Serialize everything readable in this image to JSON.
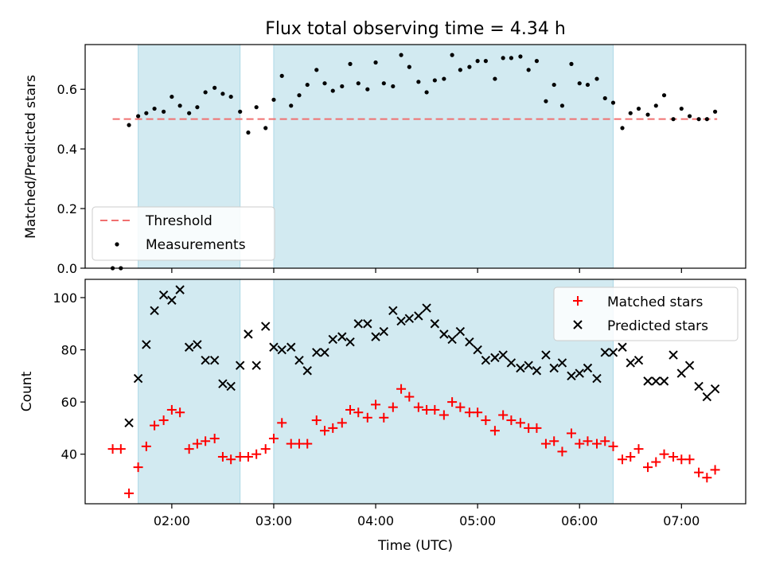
{
  "chart_data": [
    {
      "type": "scatter",
      "panel": "top",
      "title": "Flux total observing time = 4.34 h",
      "xlabel": "",
      "ylabel": "Matched/Predicted stars",
      "ylim": [
        0.0,
        0.75
      ],
      "xlim_hours": [
        1.15,
        7.63
      ],
      "yticks": [
        "0.0",
        "0.2",
        "0.4",
        "0.6"
      ],
      "yticks_values": [
        0.0,
        0.2,
        0.4,
        0.6
      ],
      "threshold": {
        "name": "Threshold",
        "value": 0.5,
        "x_range": [
          1.42,
          7.35
        ],
        "color": "#f07070"
      },
      "shaded_intervals": [
        [
          1.67,
          2.67
        ],
        [
          3.0,
          6.33
        ]
      ],
      "shade_color": "#add8e6",
      "legend": {
        "placement": "bottom-left",
        "entries": [
          "Threshold",
          "Measurements"
        ]
      },
      "series": [
        {
          "name": "Measurements",
          "color": "#000000",
          "marker": "dot",
          "x": [
            1.42,
            1.5,
            1.58,
            1.67,
            1.75,
            1.83,
            1.92,
            2.0,
            2.08,
            2.17,
            2.25,
            2.33,
            2.42,
            2.5,
            2.58,
            2.67,
            2.75,
            2.83,
            2.92,
            3.0,
            3.08,
            3.17,
            3.25,
            3.33,
            3.42,
            3.5,
            3.58,
            3.67,
            3.75,
            3.83,
            3.92,
            4.0,
            4.08,
            4.17,
            4.25,
            4.33,
            4.42,
            4.5,
            4.58,
            4.67,
            4.75,
            4.83,
            4.92,
            5.0,
            5.08,
            5.17,
            5.25,
            5.33,
            5.42,
            5.5,
            5.58,
            5.67,
            5.75,
            5.83,
            5.92,
            6.0,
            6.08,
            6.17,
            6.25,
            6.33,
            6.42,
            6.5,
            6.58,
            6.67,
            6.75,
            6.83,
            6.92,
            7.0,
            7.08,
            7.17,
            7.25,
            7.33
          ],
          "y": [
            0.0,
            0.0,
            0.48,
            0.51,
            0.52,
            0.535,
            0.525,
            0.575,
            0.545,
            0.52,
            0.54,
            0.59,
            0.605,
            0.585,
            0.575,
            0.525,
            0.455,
            0.54,
            0.47,
            0.565,
            0.645,
            0.545,
            0.58,
            0.615,
            0.665,
            0.62,
            0.595,
            0.61,
            0.685,
            0.62,
            0.6,
            0.69,
            0.62,
            0.61,
            0.715,
            0.675,
            0.625,
            0.59,
            0.63,
            0.635,
            0.715,
            0.665,
            0.675,
            0.695,
            0.695,
            0.635,
            0.705,
            0.705,
            0.71,
            0.665,
            0.695,
            0.56,
            0.615,
            0.545,
            0.685,
            0.62,
            0.615,
            0.635,
            0.57,
            0.555,
            0.47,
            0.52,
            0.535,
            0.515,
            0.545,
            0.58,
            0.5,
            0.535,
            0.51,
            0.5,
            0.5,
            0.525
          ]
        }
      ]
    },
    {
      "type": "scatter",
      "panel": "bottom",
      "title": "",
      "xlabel": "Time (UTC)",
      "ylabel": "Count",
      "ylim": [
        21,
        107
      ],
      "xlim_hours": [
        1.15,
        7.63
      ],
      "yticks": [
        "40",
        "60",
        "80",
        "100"
      ],
      "yticks_values": [
        40,
        60,
        80,
        100
      ],
      "xticks": [
        "02:00",
        "03:00",
        "04:00",
        "05:00",
        "06:00",
        "07:00"
      ],
      "xticks_values": [
        2,
        3,
        4,
        5,
        6,
        7
      ],
      "shaded_intervals": [
        [
          1.67,
          2.67
        ],
        [
          3.0,
          6.33
        ]
      ],
      "shade_color": "#add8e6",
      "legend": {
        "placement": "top-right",
        "entries": [
          "Matched stars",
          "Predicted stars"
        ]
      },
      "series": [
        {
          "name": "Matched stars",
          "color": "#ff0000",
          "marker": "plus",
          "x": [
            1.42,
            1.5,
            1.58,
            1.67,
            1.75,
            1.83,
            1.92,
            2.0,
            2.08,
            2.17,
            2.25,
            2.33,
            2.42,
            2.5,
            2.58,
            2.67,
            2.75,
            2.83,
            2.92,
            3.0,
            3.08,
            3.17,
            3.25,
            3.33,
            3.42,
            3.5,
            3.58,
            3.67,
            3.75,
            3.83,
            3.92,
            4.0,
            4.08,
            4.17,
            4.25,
            4.33,
            4.42,
            4.5,
            4.58,
            4.67,
            4.75,
            4.83,
            4.92,
            5.0,
            5.08,
            5.17,
            5.25,
            5.33,
            5.42,
            5.5,
            5.58,
            5.67,
            5.75,
            5.83,
            5.92,
            6.0,
            6.08,
            6.17,
            6.25,
            6.33,
            6.42,
            6.5,
            6.58,
            6.67,
            6.75,
            6.83,
            6.92,
            7.0,
            7.08,
            7.17,
            7.25,
            7.33
          ],
          "y": [
            42,
            42,
            25,
            35,
            43,
            51,
            53,
            57,
            56,
            42,
            44,
            45,
            46,
            39,
            38,
            39,
            39,
            40,
            42,
            46,
            52,
            44,
            44,
            44,
            53,
            49,
            50,
            52,
            57,
            56,
            54,
            59,
            54,
            58,
            65,
            62,
            58,
            57,
            57,
            55,
            60,
            58,
            56,
            56,
            53,
            49,
            55,
            53,
            52,
            50,
            50,
            44,
            45,
            41,
            48,
            44,
            45,
            44,
            45,
            43,
            38,
            39,
            42,
            35,
            37,
            40,
            39,
            38,
            38,
            33,
            31,
            34
          ]
        },
        {
          "name": "Predicted stars",
          "color": "#000000",
          "marker": "x",
          "x": [
            1.58,
            1.67,
            1.75,
            1.83,
            1.92,
            2.0,
            2.08,
            2.17,
            2.25,
            2.33,
            2.42,
            2.5,
            2.58,
            2.67,
            2.75,
            2.83,
            2.92,
            3.0,
            3.08,
            3.17,
            3.25,
            3.33,
            3.42,
            3.5,
            3.58,
            3.67,
            3.75,
            3.83,
            3.92,
            4.0,
            4.08,
            4.17,
            4.25,
            4.33,
            4.42,
            4.5,
            4.58,
            4.67,
            4.75,
            4.83,
            4.92,
            5.0,
            5.08,
            5.17,
            5.25,
            5.33,
            5.42,
            5.5,
            5.58,
            5.67,
            5.75,
            5.83,
            5.92,
            6.0,
            6.08,
            6.17,
            6.25,
            6.33,
            6.42,
            6.5,
            6.58,
            6.67,
            6.75,
            6.83,
            6.92,
            7.0,
            7.08,
            7.17,
            7.25,
            7.33
          ],
          "y": [
            52,
            69,
            82,
            95,
            101,
            99,
            103,
            81,
            82,
            76,
            76,
            67,
            66,
            74,
            86,
            74,
            89,
            81,
            80,
            81,
            76,
            72,
            79,
            79,
            84,
            85,
            83,
            90,
            90,
            85,
            87,
            95,
            91,
            92,
            93,
            96,
            90,
            86,
            84,
            87,
            83,
            80,
            76,
            77,
            78,
            75,
            73,
            74,
            72,
            78,
            73,
            75,
            70,
            71,
            73,
            69,
            79,
            79,
            81,
            75,
            76,
            68,
            68,
            68,
            78,
            71,
            74,
            66,
            62,
            65
          ]
        }
      ]
    }
  ]
}
